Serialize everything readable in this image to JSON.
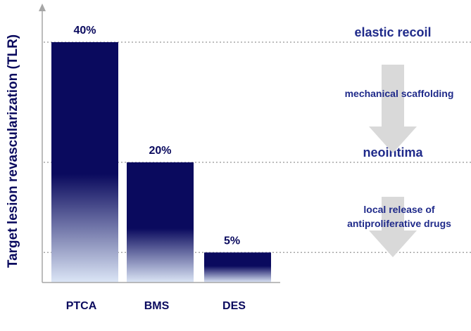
{
  "chart_data": {
    "type": "bar",
    "title": "",
    "xlabel": "",
    "ylabel": "Target lesion revascularization (TLR)",
    "categories": [
      "PTCA",
      "BMS",
      "DES"
    ],
    "values": [
      40,
      20,
      5
    ],
    "data_labels": [
      "40%",
      "20%",
      "5%"
    ],
    "ylim": [
      0,
      43
    ],
    "grid": false,
    "reference_levels": [
      {
        "value": 40,
        "label": "elastic recoil"
      },
      {
        "value": 20,
        "label": "neointima"
      },
      {
        "value": 5,
        "label": ""
      }
    ],
    "annotations": [
      {
        "lines": [
          "mechanical scaffolding"
        ]
      },
      {
        "lines": [
          "local release of",
          "antiproliferative drugs"
        ]
      }
    ],
    "colors": {
      "bar_top": "#0a0a5e",
      "bar_bottom": "#dce6f6",
      "text": "#1f2a8a",
      "label": "#0a0a5e",
      "arrow": "#d9d9d9",
      "axis": "#a6a6a6"
    }
  }
}
